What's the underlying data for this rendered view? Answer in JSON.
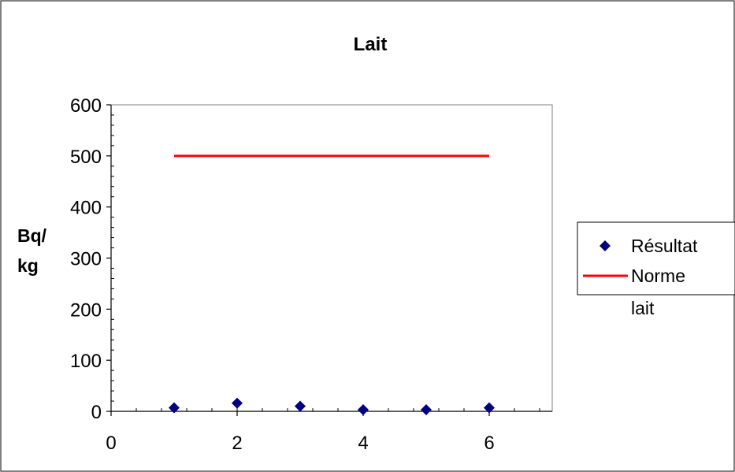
{
  "chart_data": {
    "type": "scatter",
    "title": "Lait",
    "xlabel": "",
    "ylabel_lines": [
      "Bq/",
      "kg"
    ],
    "xlim": [
      0,
      7
    ],
    "ylim": [
      0,
      600
    ],
    "x_ticks": [
      0,
      2,
      4,
      6
    ],
    "y_ticks": [
      0,
      100,
      200,
      300,
      400,
      500,
      600
    ],
    "grid": false,
    "legend_position": "right",
    "series": [
      {
        "name": "Résultat",
        "kind": "markers",
        "marker": "diamond",
        "color": "#000080",
        "x": [
          1,
          2,
          3,
          4,
          5,
          6
        ],
        "y": [
          7,
          16,
          10,
          3,
          3,
          7
        ]
      },
      {
        "name_lines": [
          "Norme",
          "lait"
        ],
        "kind": "line",
        "color": "#ff0000",
        "x": [
          1,
          6
        ],
        "y": [
          500,
          500
        ]
      }
    ]
  }
}
